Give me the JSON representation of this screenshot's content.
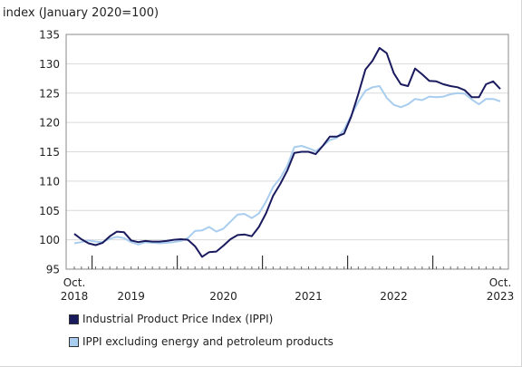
{
  "chart_data": {
    "type": "line",
    "ylabel": "index (January 2020=100)",
    "ylim": [
      95,
      135
    ],
    "yticks": [
      95,
      100,
      105,
      110,
      115,
      120,
      125,
      130,
      135
    ],
    "x_start": "2018-10",
    "x_end": "2023-10",
    "xtick_labels": [
      {
        "month": 0,
        "lines": [
          "Oct.",
          "2018"
        ]
      },
      {
        "month": 8,
        "lines": [
          "2019"
        ]
      },
      {
        "month": 21,
        "lines": [
          "2020"
        ]
      },
      {
        "month": 33,
        "lines": [
          "2021"
        ]
      },
      {
        "month": 45,
        "lines": [
          "2022"
        ]
      },
      {
        "month": 60,
        "lines": [
          "Oct.",
          "2023"
        ]
      }
    ],
    "year_boundaries": [
      3,
      15,
      27,
      39,
      51
    ],
    "grid": "horizontal",
    "legend_position": "bottom",
    "series": [
      {
        "name": "Industrial Product Price Index (IPPI)",
        "color": "#1a1a5e",
        "values": [
          101.0,
          100.1,
          99.4,
          99.1,
          99.5,
          100.6,
          101.4,
          101.3,
          99.9,
          99.6,
          99.8,
          99.7,
          99.7,
          99.8,
          100.0,
          100.1,
          100.0,
          98.9,
          97.1,
          97.9,
          98.0,
          99.0,
          100.1,
          100.8,
          100.9,
          100.6,
          102.2,
          104.5,
          107.5,
          109.5,
          111.8,
          114.8,
          115.0,
          115.0,
          114.6,
          116.0,
          117.6,
          117.6,
          118.1,
          121.0,
          124.8,
          129.0,
          130.5,
          132.7,
          131.8,
          128.4,
          126.5,
          126.2,
          129.2,
          128.2,
          127.1,
          127.0,
          126.5,
          126.2,
          126.0,
          125.5,
          124.3,
          124.3,
          126.5,
          127.0,
          125.7
        ]
      },
      {
        "name": "IPPI excluding energy and petroleum products",
        "color": "#a9cdee",
        "values": [
          99.4,
          99.6,
          99.9,
          99.7,
          99.6,
          100.2,
          100.5,
          100.3,
          99.6,
          99.2,
          99.6,
          99.5,
          99.4,
          99.5,
          99.6,
          99.8,
          100.3,
          101.5,
          101.6,
          102.2,
          101.4,
          101.9,
          103.1,
          104.3,
          104.4,
          103.7,
          104.5,
          106.5,
          109.0,
          110.5,
          112.6,
          115.8,
          116.0,
          115.6,
          115.1,
          116.0,
          117.0,
          117.4,
          118.8,
          121.2,
          123.5,
          125.4,
          126.0,
          126.2,
          124.2,
          123.0,
          122.6,
          123.1,
          124.0,
          123.8,
          124.4,
          124.3,
          124.4,
          124.8,
          125.0,
          124.9,
          123.9,
          123.1,
          124.0,
          124.0,
          123.6
        ]
      }
    ]
  }
}
